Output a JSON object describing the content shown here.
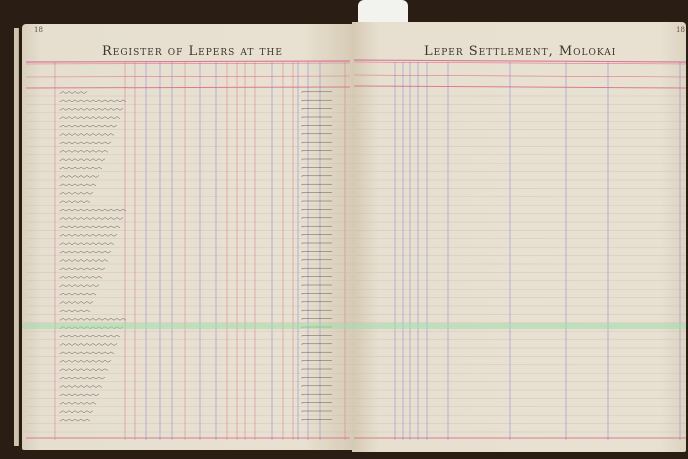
{
  "left_page": {
    "page_number": "18",
    "title": "Register of Lepers at the"
  },
  "right_page": {
    "page_number": "18",
    "title": "Leper Settlement, Molokai"
  },
  "colors": {
    "paper": "#e6dfcf",
    "rule_red": "#d9708f",
    "rule_blue": "#7d7fd0",
    "background": "#2a1d14"
  }
}
